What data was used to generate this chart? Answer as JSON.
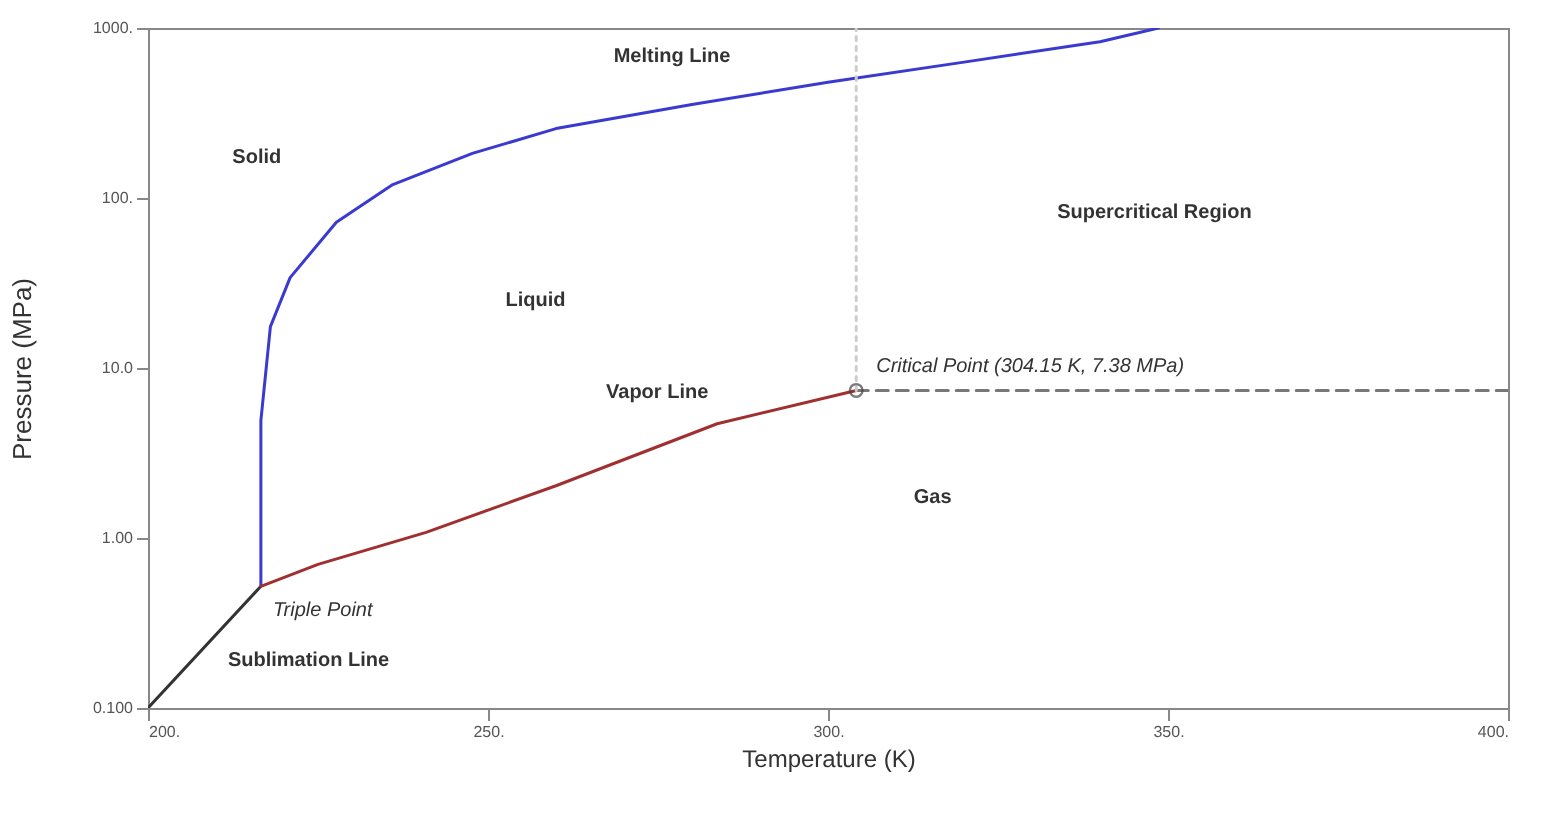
{
  "chart_data": {
    "type": "line",
    "xlabel": "Temperature (K)",
    "ylabel": "Pressure (MPa)",
    "log": "y",
    "xlim": [
      200,
      400
    ],
    "ylim": [
      0.1,
      1000
    ],
    "xticks": [
      {
        "value": 200,
        "label": "200."
      },
      {
        "value": 250,
        "label": "250."
      },
      {
        "value": 300,
        "label": "300."
      },
      {
        "value": 350,
        "label": "350."
      },
      {
        "value": 400,
        "label": "400."
      }
    ],
    "yticks": [
      {
        "value": 0.1,
        "label": "0.100"
      },
      {
        "value": 1,
        "label": "1.00"
      },
      {
        "value": 10,
        "label": "10.0"
      },
      {
        "value": 100,
        "label": "100."
      },
      {
        "value": 1000,
        "label": "1000."
      }
    ],
    "grid": false,
    "series": [
      {
        "type": "line",
        "color": "#333333",
        "line_style": "solid",
        "x": [
          200,
          216.6
        ],
        "values": [
          0.1,
          0.52
        ]
      },
      {
        "type": "line",
        "color": "#3a3ad0",
        "line_style": "solid",
        "x": [
          216.6,
          216.6,
          218,
          220.9,
          227.7,
          236,
          247.7,
          260,
          280,
          300,
          320,
          340,
          348.6
        ],
        "values": [
          0.52,
          4.9,
          17.5,
          34,
          72,
          120,
          183,
          256,
          355,
          480,
          630,
          830,
          1000
        ]
      },
      {
        "type": "line",
        "color": "#a03030",
        "line_style": "solid",
        "x": [
          216.6,
          225,
          240.9,
          260,
          283.7,
          304.15
        ],
        "values": [
          0.52,
          0.7,
          1.08,
          2.03,
          4.7,
          7.38
        ]
      },
      {
        "type": "line",
        "color": "#777777",
        "line_style": "dashed",
        "x": [
          304.15,
          400
        ],
        "values": [
          7.38,
          7.38
        ]
      },
      {
        "type": "line",
        "color": "#cccccc",
        "line_style": "dotted",
        "x": [
          304.15,
          304.15
        ],
        "values": [
          7.38,
          1000
        ]
      },
      {
        "type": "scatter",
        "color": "#444444",
        "marker": "circle",
        "x": [
          304.15
        ],
        "values": [
          7.38
        ]
      }
    ],
    "annotations": [
      "Solid",
      {
        "text": "Melting Line",
        "x": 280,
        "y": 355
      },
      "Liquid",
      "Supercritical Region",
      {
        "text": "Critical Point (304.15 K, 7.38 MPa)",
        "x": 304.15,
        "y": 7.38
      },
      {
        "text": "Vapor Line",
        "x": 283.7,
        "y": 4.7
      },
      "Gas",
      {
        "text": "Triple Point",
        "x": 216.6,
        "y": 0.52
      },
      "Sublimation Line"
    ]
  }
}
